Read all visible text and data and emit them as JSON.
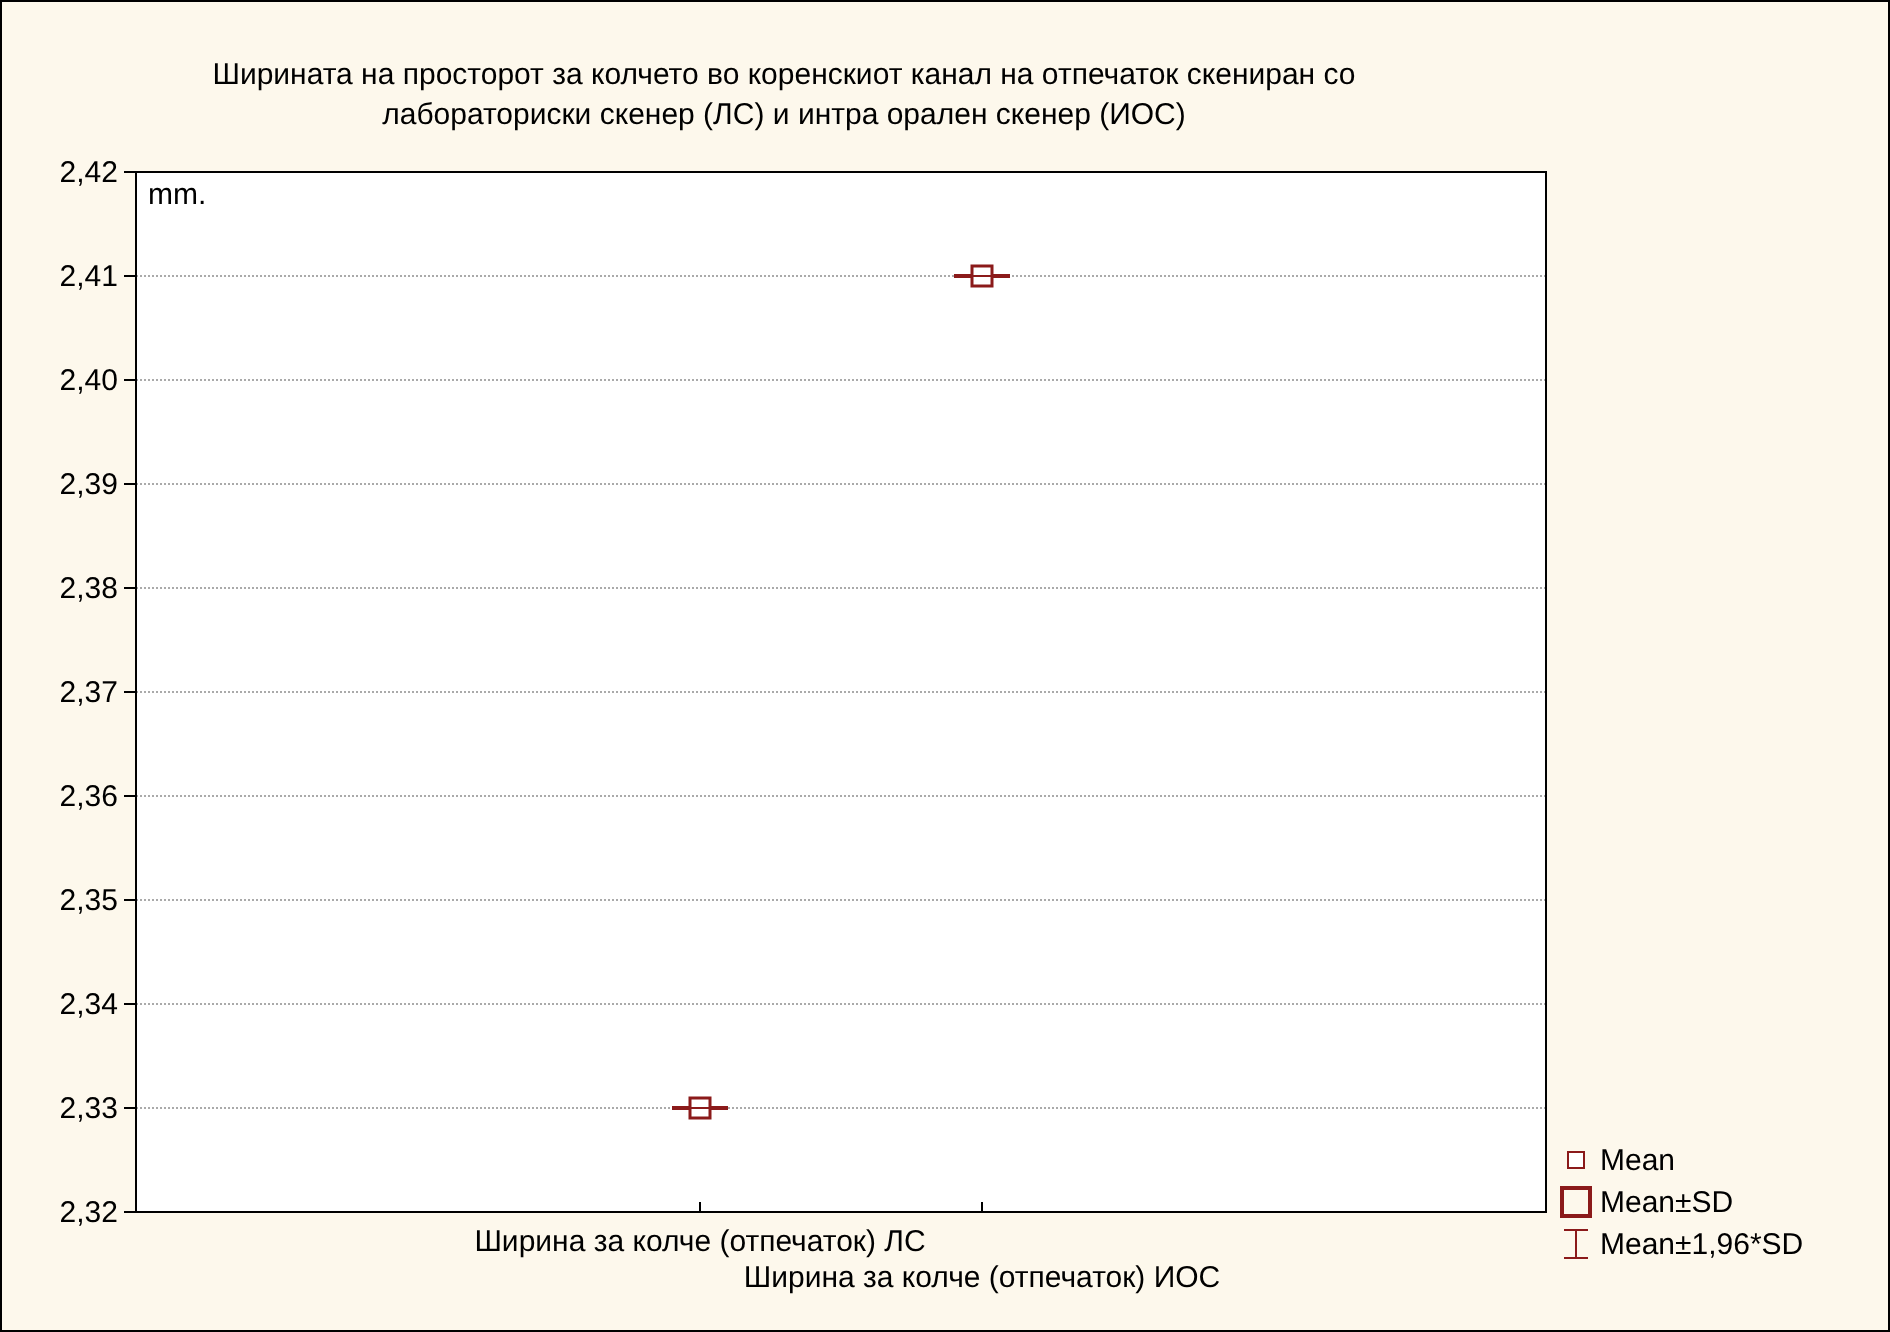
{
  "chart_data": {
    "type": "box",
    "title": "Ширината на просторот за колчето во коренскиот канал на отпечаток скениран со\nлабораториски скенер (ЛС) и интра орален скенер (ИОС)",
    "ylabel": "mm.",
    "categories": [
      "Ширина за колче (отпечаток) ЛС",
      "Ширина за колче (отпечаток) ИОС"
    ],
    "boxes": [
      {
        "low": 2.33,
        "q1": 2.33,
        "median": 2.33,
        "q3": 2.33,
        "high": 2.33,
        "mean": 2.33
      },
      {
        "low": 2.41,
        "q1": 2.41,
        "median": 2.41,
        "q3": 2.41,
        "high": 2.41,
        "mean": 2.41
      }
    ],
    "color": "#8b1a1a",
    "ylim": [
      2.32,
      2.42
    ],
    "yticks": [
      {
        "value": 2.32,
        "label": "2,32"
      },
      {
        "value": 2.33,
        "label": "2,33"
      },
      {
        "value": 2.34,
        "label": "2,34"
      },
      {
        "value": 2.35,
        "label": "2,35"
      },
      {
        "value": 2.36,
        "label": "2,36"
      },
      {
        "value": 2.37,
        "label": "2,37"
      },
      {
        "value": 2.38,
        "label": "2,38"
      },
      {
        "value": 2.39,
        "label": "2,39"
      },
      {
        "value": 2.4,
        "label": "2,40"
      },
      {
        "value": 2.41,
        "label": "2,41"
      },
      {
        "value": 2.42,
        "label": "2,42"
      }
    ],
    "grid": "y",
    "annotations": [
      "Mean",
      "Mean±SD",
      "Mean±1,96*SD"
    ]
  }
}
